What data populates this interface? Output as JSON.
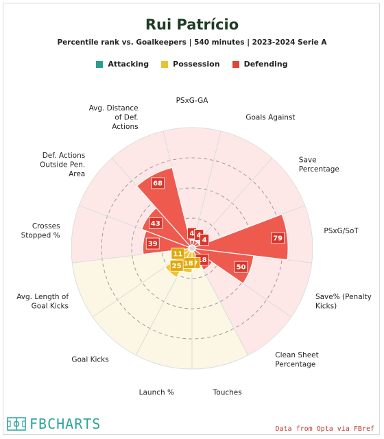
{
  "header": {
    "title": "Rui Patrício",
    "subtitle": "Percentile rank vs. Goalkeepers | 540 minutes | 2023-2024 Serie A"
  },
  "legend": [
    {
      "label": "Attacking",
      "color": "#2a9d8f"
    },
    {
      "label": "Possession",
      "color": "#e9c233"
    },
    {
      "label": "Defending",
      "color": "#e0453a"
    }
  ],
  "colors": {
    "defending_bar": "#ef5a4f",
    "possession_bar": "#f2c230",
    "defending_bg": "#fde8e7",
    "possession_bg": "#fcf7e4",
    "label_box_defending": "#d9352b",
    "label_box_possession": "#e0a80c"
  },
  "chart_data": {
    "type": "polar_bar",
    "range": [
      0,
      100
    ],
    "categories": [
      {
        "label": "PSxG-GA",
        "value": 4,
        "group": "Defending"
      },
      {
        "label": "Goals Against",
        "value": 4,
        "group": "Defending"
      },
      {
        "label": "Save Percentage",
        "value": 4,
        "group": "Defending"
      },
      {
        "label": "PSxG/SoT",
        "value": 79,
        "group": "Defending"
      },
      {
        "label": "Save% (Penalty Kicks)",
        "value": 50,
        "group": "Defending"
      },
      {
        "label": "Clean Sheet Percentage",
        "value": 18,
        "group": "Defending"
      },
      {
        "label": "Touches",
        "value": 7,
        "group": "Possession"
      },
      {
        "label": "Launch %",
        "value": 18,
        "group": "Possession"
      },
      {
        "label": "Goal Kicks",
        "value": 25,
        "group": "Possession"
      },
      {
        "label": "Avg. Length of Goal Kicks",
        "value": 11,
        "group": "Possession"
      },
      {
        "label": "Crosses Stopped %",
        "value": 39,
        "group": "Defending"
      },
      {
        "label": "Def. Actions Outside Pen. Area",
        "value": 43,
        "group": "Defending"
      },
      {
        "label": "Avg. Distance of Def. Actions",
        "value": 68,
        "group": "Defending"
      }
    ]
  },
  "footer": {
    "logo_text": "FBCHARTS",
    "credit": "Data from Opta via FBref"
  }
}
